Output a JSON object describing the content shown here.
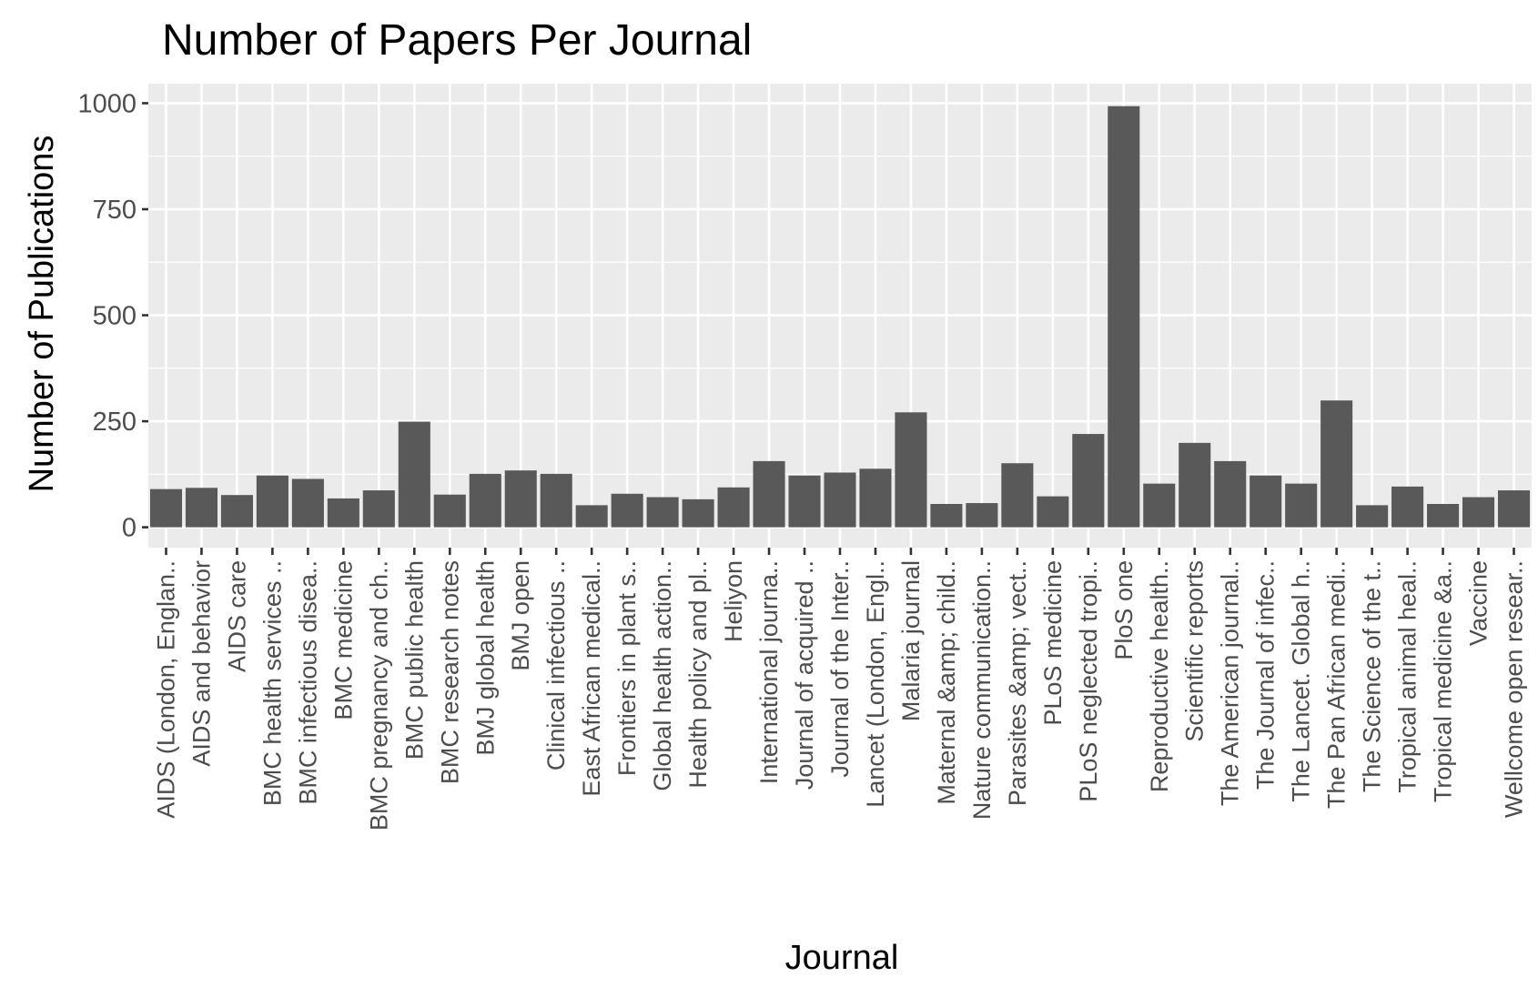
{
  "chart_data": {
    "type": "bar",
    "title": "Number of Papers Per Journal",
    "xlabel": "Journal",
    "ylabel": "Number of Publications",
    "ylim": [
      0,
      1000
    ],
    "yticks": [
      0,
      250,
      500,
      750,
      1000
    ],
    "grid": true,
    "legend": "none",
    "colors": {
      "bar": "#595959",
      "panel": "#ebebeb",
      "grid": "#ffffff"
    },
    "categories": [
      "AIDS (London, Englan..",
      "AIDS and behavior",
      "AIDS care",
      "BMC health services ..",
      "BMC infectious disea..",
      "BMC medicine",
      "BMC pregnancy and ch..",
      "BMC public health",
      "BMC research notes",
      "BMJ global health",
      "BMJ open",
      "Clinical infectious ..",
      "East African medical..",
      "Frontiers in plant s..",
      "Global health action..",
      "Health policy and pl..",
      "Heliyon",
      "International journa..",
      "Journal of acquired ..",
      "Journal of the Inter..",
      "Lancet (London, Engl..",
      "Malaria journal",
      "Maternal &amp; child..",
      "Nature communication..",
      "Parasites &amp; vect..",
      "PLoS medicine",
      "PLoS neglected tropi..",
      "PloS one",
      "Reproductive health..",
      "Scientific reports",
      "The American journal..",
      "The Journal of infec..",
      "The Lancet. Global h..",
      "The Pan African medi..",
      "The Science of the t..",
      "Tropical animal heal..",
      "Tropical medicine &a..",
      "Vaccine",
      "Wellcome open resear.."
    ],
    "values": [
      90,
      93,
      76,
      122,
      114,
      68,
      87,
      249,
      77,
      126,
      134,
      126,
      52,
      79,
      71,
      66,
      94,
      156,
      122,
      129,
      138,
      271,
      55,
      57,
      151,
      73,
      220,
      993,
      103,
      199,
      156,
      122,
      103,
      299,
      52,
      96,
      55,
      71,
      87
    ]
  }
}
